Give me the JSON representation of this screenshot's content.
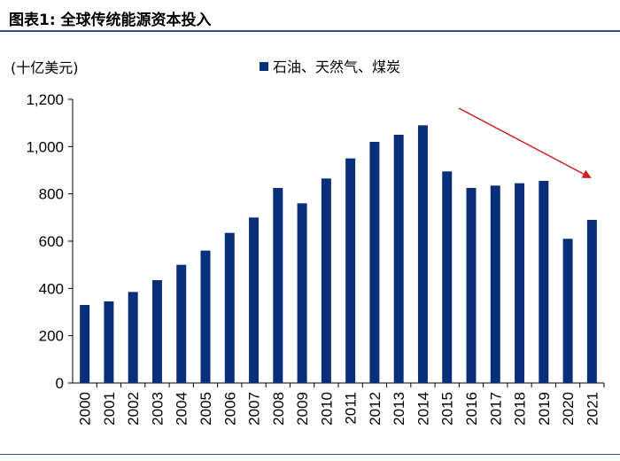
{
  "header": {
    "title": "图表1:   全球传统能源资本投入"
  },
  "chart_data": {
    "type": "bar",
    "unit_label": "(十亿美元)",
    "categories": [
      "2000",
      "2001",
      "2002",
      "2003",
      "2004",
      "2005",
      "2006",
      "2007",
      "2008",
      "2009",
      "2010",
      "2011",
      "2012",
      "2013",
      "2014",
      "2015",
      "2016",
      "2017",
      "2018",
      "2019",
      "2020",
      "2021"
    ],
    "series": [
      {
        "name": "石油、天然气、煤炭",
        "color": "#0a2f7a",
        "values": [
          330,
          345,
          385,
          435,
          500,
          560,
          635,
          700,
          825,
          760,
          865,
          950,
          1020,
          1050,
          1090,
          895,
          825,
          835,
          845,
          855,
          610,
          690
        ]
      }
    ],
    "ylim": [
      0,
      1200
    ],
    "yticks": [
      0,
      200,
      400,
      600,
      800,
      1000,
      1200
    ],
    "ytick_labels": [
      "0",
      "200",
      "400",
      "600",
      "800",
      "1,000",
      "1,200"
    ],
    "grid": false,
    "legend_position": "top-center",
    "annotation": {
      "type": "arrow",
      "color": "#cc1f1f",
      "direction": "down-right"
    }
  }
}
